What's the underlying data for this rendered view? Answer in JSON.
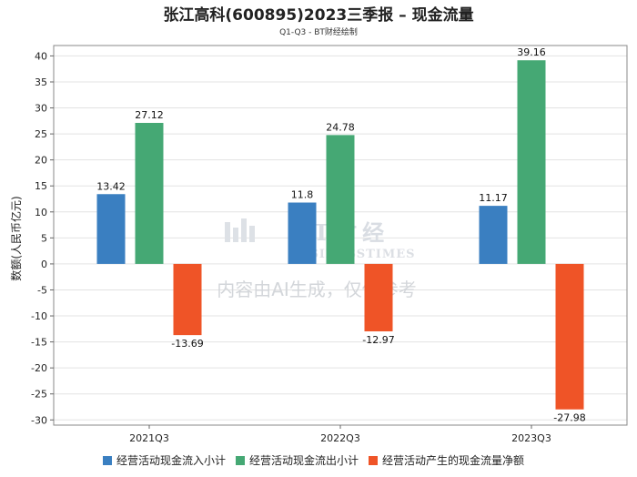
{
  "chart_data": {
    "type": "bar",
    "title": "张江高科(600895)2023三季报 – 现金流量",
    "subtitle": "Q1-Q3 - BT财经绘制",
    "ylabel": "数额(人民币亿元)",
    "xlabel": "",
    "categories": [
      "2021Q3",
      "2022Q3",
      "2023Q3"
    ],
    "series": [
      {
        "name": "经营活动现金流入小计",
        "color": "#3a7fc1",
        "values": [
          13.42,
          11.8,
          11.17
        ]
      },
      {
        "name": "经营活动现金流出小计",
        "color": "#45a874",
        "values": [
          27.12,
          24.78,
          39.16
        ]
      },
      {
        "name": "经营活动产生的现金流量净额",
        "color": "#ef5427",
        "values": [
          -13.69,
          -12.97,
          -27.98
        ]
      }
    ],
    "ylim": [
      -31,
      42
    ],
    "yticks": [
      -30,
      -25,
      -20,
      -15,
      -10,
      -5,
      0,
      5,
      10,
      15,
      20,
      25,
      30,
      35,
      40
    ],
    "grid": true,
    "legend_position": "bottom"
  },
  "watermark": {
    "brand": "BT财经",
    "brand_sub": "BUSINESSTIMES",
    "note": "内容由AI生成，仅供参考"
  }
}
